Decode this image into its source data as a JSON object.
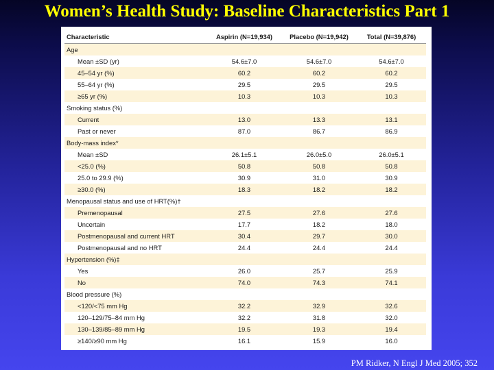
{
  "slide": {
    "title": "Women’s Health Study: Baseline Characteristics Part 1",
    "citation": "PM Ridker, N Engl J Med 2005; 352"
  },
  "table": {
    "headers": [
      "Characteristic",
      "Aspirin (N=19,934)",
      "Placebo (N=19,942)",
      "Total (N=39,876)"
    ],
    "rows": [
      {
        "label": "Age",
        "values": [
          "",
          "",
          ""
        ]
      },
      {
        "label": "Mean ±SD (yr)",
        "values": [
          "54.6±7.0",
          "54.6±7.0",
          "54.6±7.0"
        ]
      },
      {
        "label": "45–54 yr (%)",
        "values": [
          "60.2",
          "60.2",
          "60.2"
        ]
      },
      {
        "label": "55–64 yr (%)",
        "values": [
          "29.5",
          "29.5",
          "29.5"
        ]
      },
      {
        "label": "≥65 yr (%)",
        "values": [
          "10.3",
          "10.3",
          "10.3"
        ]
      },
      {
        "label": "Smoking status (%)",
        "values": [
          "",
          "",
          ""
        ]
      },
      {
        "label": "Current",
        "values": [
          "13.0",
          "13.3",
          "13.1"
        ]
      },
      {
        "label": "Past or never",
        "values": [
          "87.0",
          "86.7",
          "86.9"
        ]
      },
      {
        "label": "Body-mass index*",
        "values": [
          "",
          "",
          ""
        ]
      },
      {
        "label": "Mean ±SD",
        "values": [
          "26.1±5.1",
          "26.0±5.0",
          "26.0±5.1"
        ]
      },
      {
        "label": "<25.0 (%)",
        "values": [
          "50.8",
          "50.8",
          "50.8"
        ]
      },
      {
        "label": "25.0 to 29.9 (%)",
        "values": [
          "30.9",
          "31.0",
          "30.9"
        ]
      },
      {
        "label": "≥30.0 (%)",
        "values": [
          "18.3",
          "18.2",
          "18.2"
        ]
      },
      {
        "label": "Menopausal status and use of HRT(%)†",
        "values": [
          "",
          "",
          ""
        ]
      },
      {
        "label": "Premenopausal",
        "values": [
          "27.5",
          "27.6",
          "27.6"
        ]
      },
      {
        "label": "Uncertain",
        "values": [
          "17.7",
          "18.2",
          "18.0"
        ]
      },
      {
        "label": "Postmenopausal and current HRT",
        "values": [
          "30.4",
          "29.7",
          "30.0"
        ]
      },
      {
        "label": "Postmenopausal and no HRT",
        "values": [
          "24.4",
          "24.4",
          "24.4"
        ]
      },
      {
        "label": "Hypertension (%)‡",
        "values": [
          "",
          "",
          ""
        ]
      },
      {
        "label": "Yes",
        "values": [
          "26.0",
          "25.7",
          "25.9"
        ]
      },
      {
        "label": "No",
        "values": [
          "74.0",
          "74.3",
          "74.1"
        ]
      },
      {
        "label": "Blood pressure (%)",
        "values": [
          "",
          "",
          ""
        ]
      },
      {
        "label": "<120/<75 mm Hg",
        "values": [
          "32.2",
          "32.9",
          "32.6"
        ]
      },
      {
        "label": "120–129/75–84 mm Hg",
        "values": [
          "32.2",
          "31.8",
          "32.0"
        ]
      },
      {
        "label": "130–139/85–89 mm Hg",
        "values": [
          "19.5",
          "19.3",
          "19.4"
        ]
      },
      {
        "label": "≥140/≥90 mm Hg",
        "values": [
          "16.1",
          "15.9",
          "16.0"
        ]
      }
    ]
  }
}
